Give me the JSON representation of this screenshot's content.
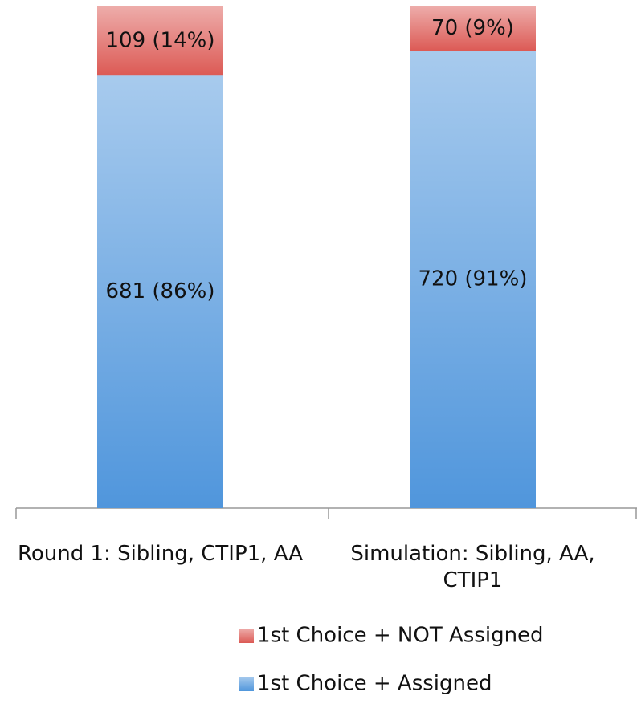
{
  "chart_data": {
    "type": "stacked_bar",
    "categories": [
      "Round 1: Sibling, CTIP1, AA",
      "Simulation: Sibling, AA, CTIP1"
    ],
    "series": [
      {
        "name": "1st Choice + Assigned",
        "color": "#5096dc",
        "values": [
          681,
          720
        ],
        "value_labels": [
          "681 (86%)",
          "720 (91%)"
        ]
      },
      {
        "name": "1st Choice + NOT Assigned",
        "color": "#dc5a55",
        "values": [
          109,
          70
        ],
        "value_labels": [
          "109 (14%)",
          "70 (9%)"
        ]
      }
    ],
    "ylim": [
      0,
      790
    ],
    "legend": "bottom"
  }
}
